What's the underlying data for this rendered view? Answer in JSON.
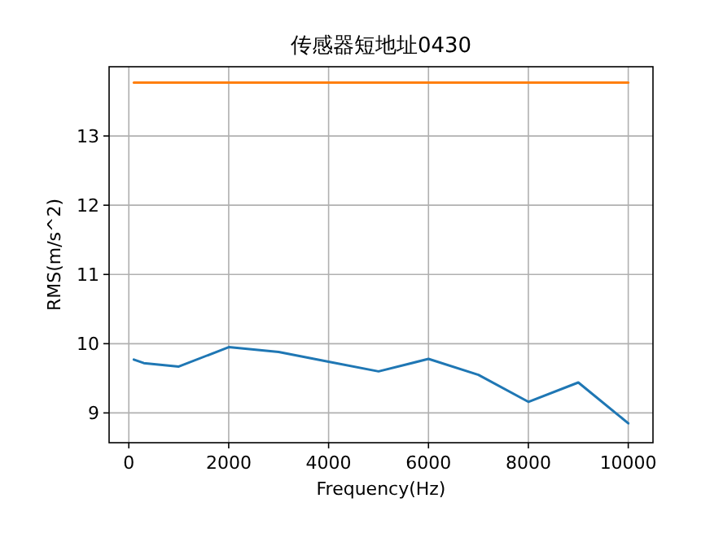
{
  "chart_data": {
    "type": "line",
    "title": "传感器短地址0430",
    "xlabel": "Frequency(Hz)",
    "ylabel": "RMS(m/s^2)",
    "x": [
      100,
      300,
      1000,
      2000,
      3000,
      4000,
      5000,
      6000,
      7000,
      8000,
      9000,
      10000
    ],
    "series": [
      {
        "color": "#1f77b4",
        "values": [
          9.77,
          9.72,
          9.67,
          9.95,
          9.88,
          9.74,
          9.6,
          9.78,
          9.55,
          9.16,
          9.44,
          8.85
        ]
      },
      {
        "color": "#ff7f0e",
        "x": [
          100,
          10000
        ],
        "values": [
          13.77,
          13.77
        ]
      }
    ],
    "xlim": [
      -395,
      10495
    ],
    "ylim": [
      8.57,
      14.0
    ],
    "xticks": [
      0,
      2000,
      4000,
      6000,
      8000,
      10000
    ],
    "yticks": [
      9,
      10,
      11,
      12,
      13
    ],
    "grid": true
  }
}
